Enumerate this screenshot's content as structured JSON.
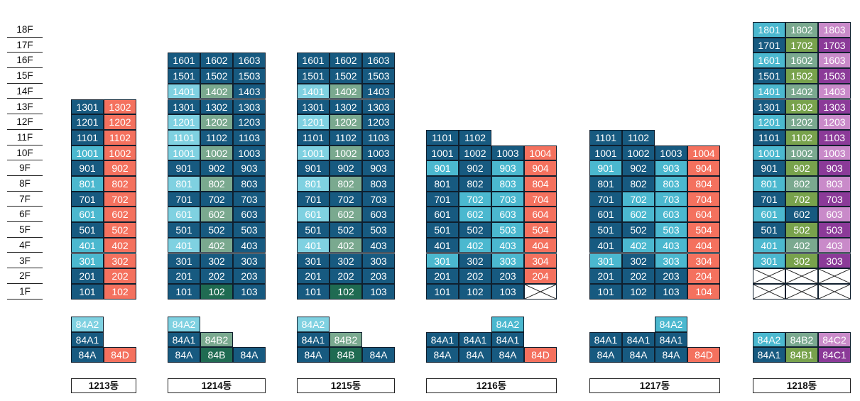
{
  "floors": [
    "18F",
    "17F",
    "16F",
    "15F",
    "14F",
    "13F",
    "12F",
    "11F",
    "10F",
    "9F",
    "8F",
    "7F",
    "6F",
    "5F",
    "4F",
    "3F",
    "2F",
    "1F"
  ],
  "palette": {
    "dblue": "#175a80",
    "lblue": "#4bb8cf",
    "vlblue": "#7fd1e1",
    "dgreen": "#1f6b52",
    "mgreen": "#3d9b6d",
    "sgreen": "#7aa98f",
    "lgreen": "#78a24c",
    "coral": "#f4715e",
    "purple": "#8b3a98",
    "lpurple": "#c98ac9",
    "empty": "#ffffff"
  },
  "buildings": [
    {
      "name": "1213동",
      "x": 100,
      "columns": [
        {
          "unit": "01",
          "floors": [
            1,
            13
          ],
          "colors": {
            "1": "dblue",
            "2": "dblue",
            "3": "lblue",
            "4": "lblue",
            "5": "dblue",
            "6": "lblue",
            "7": "dblue",
            "8": "lblue",
            "9": "dblue",
            "10": "lblue",
            "11": "dblue",
            "12": "dblue",
            "13": "dblue"
          }
        },
        {
          "unit": "02",
          "floors": [
            1,
            13
          ],
          "default": "coral"
        }
      ],
      "types": [
        [
          {
            "t": "84A2",
            "c": "vlblue"
          }
        ],
        [
          {
            "t": "84A1",
            "c": "dblue"
          }
        ],
        [
          {
            "t": "84A",
            "c": "dblue"
          },
          {
            "t": "84D",
            "c": "coral"
          }
        ]
      ]
    },
    {
      "name": "1214동",
      "x": 236,
      "columns": [
        {
          "unit": "01",
          "floors": [
            1,
            16
          ],
          "colors": {
            "1": "dblue",
            "2": "dblue",
            "3": "dblue",
            "4": "vlblue",
            "5": "dblue",
            "6": "vlblue",
            "7": "dblue",
            "8": "vlblue",
            "9": "dblue",
            "10": "vlblue",
            "11": "vlblue",
            "12": "vlblue",
            "13": "dblue",
            "14": "vlblue",
            "15": "dblue",
            "16": "dblue"
          }
        },
        {
          "unit": "02",
          "floors": [
            1,
            16
          ],
          "colors": {
            "1": "dgreen",
            "2": "dblue",
            "3": "dblue",
            "4": "sgreen",
            "5": "dblue",
            "6": "sgreen",
            "7": "dblue",
            "8": "sgreen",
            "9": "dblue",
            "10": "sgreen",
            "11": "dblue",
            "12": "sgreen",
            "13": "dblue",
            "14": "sgreen",
            "15": "dblue",
            "16": "dblue"
          }
        },
        {
          "unit": "03",
          "floors": [
            1,
            16
          ],
          "default": "dblue"
        }
      ],
      "types": [
        [
          {
            "t": "84A2",
            "c": "vlblue"
          }
        ],
        [
          {
            "t": "84A1",
            "c": "dblue"
          },
          {
            "t": "84B2",
            "c": "sgreen"
          }
        ],
        [
          {
            "t": "84A",
            "c": "dblue"
          },
          {
            "t": "84B",
            "c": "dgreen"
          },
          {
            "t": "84A",
            "c": "dblue"
          }
        ]
      ]
    },
    {
      "name": "1215동",
      "x": 418,
      "columns": [
        {
          "unit": "01",
          "floors": [
            1,
            16
          ],
          "colors": {
            "1": "dblue",
            "2": "dblue",
            "3": "dblue",
            "4": "vlblue",
            "5": "dblue",
            "6": "vlblue",
            "7": "dblue",
            "8": "vlblue",
            "9": "dblue",
            "10": "vlblue",
            "11": "dblue",
            "12": "vlblue",
            "13": "dblue",
            "14": "vlblue",
            "15": "dblue",
            "16": "dblue"
          }
        },
        {
          "unit": "02",
          "floors": [
            1,
            16
          ],
          "colors": {
            "1": "dgreen",
            "2": "dblue",
            "3": "dblue",
            "4": "sgreen",
            "5": "dblue",
            "6": "sgreen",
            "7": "dblue",
            "8": "sgreen",
            "9": "dblue",
            "10": "sgreen",
            "11": "dblue",
            "12": "sgreen",
            "13": "dblue",
            "14": "sgreen",
            "15": "dblue",
            "16": "dblue"
          }
        },
        {
          "unit": "03",
          "floors": [
            1,
            16
          ],
          "default": "dblue"
        }
      ],
      "types": [
        [
          {
            "t": "84A2",
            "c": "vlblue"
          }
        ],
        [
          {
            "t": "84A1",
            "c": "dblue"
          },
          {
            "t": "84B2",
            "c": "sgreen"
          }
        ],
        [
          {
            "t": "84A",
            "c": "dblue"
          },
          {
            "t": "84B",
            "c": "dgreen"
          },
          {
            "t": "84A",
            "c": "dblue"
          }
        ]
      ]
    },
    {
      "name": "1216동",
      "x": 600,
      "columns": [
        {
          "unit": "01",
          "floors": [
            1,
            11
          ],
          "colors": {
            "1": "dblue",
            "2": "dblue",
            "3": "lblue",
            "4": "dblue",
            "5": "dblue",
            "6": "dblue",
            "7": "dblue",
            "8": "dblue",
            "9": "lblue",
            "10": "dblue",
            "11": "dblue"
          }
        },
        {
          "unit": "02",
          "floors": [
            1,
            11
          ],
          "colors": {
            "1": "dblue",
            "2": "dblue",
            "3": "dblue",
            "4": "lblue",
            "5": "dblue",
            "6": "lblue",
            "7": "lblue",
            "8": "dblue",
            "9": "dblue",
            "10": "dblue",
            "11": "dblue"
          }
        },
        {
          "unit": "03",
          "floors": [
            1,
            10
          ],
          "colors": {
            "1": "dblue",
            "2": "dblue",
            "3": "lblue",
            "4": "lblue",
            "5": "lblue",
            "6": "lblue",
            "7": "lblue",
            "8": "lblue",
            "9": "lblue",
            "10": "dblue"
          }
        },
        {
          "unit": "04",
          "floors": [
            2,
            10
          ],
          "default": "coral",
          "empty_floors": [
            1
          ]
        }
      ],
      "types": [
        [
          null,
          null,
          {
            "t": "84A2",
            "c": "lblue"
          }
        ],
        [
          {
            "t": "84A1",
            "c": "dblue"
          },
          {
            "t": "84A1",
            "c": "dblue"
          },
          {
            "t": "84A1",
            "c": "dblue"
          }
        ],
        [
          {
            "t": "84A",
            "c": "dblue"
          },
          {
            "t": "84A",
            "c": "dblue"
          },
          {
            "t": "84A",
            "c": "dblue"
          },
          {
            "t": "84D",
            "c": "coral"
          }
        ]
      ]
    },
    {
      "name": "1217동",
      "x": 830,
      "columns": [
        {
          "unit": "01",
          "floors": [
            1,
            11
          ],
          "colors": {
            "1": "dblue",
            "2": "dblue",
            "3": "lblue",
            "4": "dblue",
            "5": "dblue",
            "6": "dblue",
            "7": "dblue",
            "8": "dblue",
            "9": "lblue",
            "10": "dblue",
            "11": "dblue"
          }
        },
        {
          "unit": "02",
          "floors": [
            1,
            11
          ],
          "colors": {
            "1": "dblue",
            "2": "dblue",
            "3": "dblue",
            "4": "lblue",
            "5": "dblue",
            "6": "lblue",
            "7": "lblue",
            "8": "dblue",
            "9": "dblue",
            "10": "dblue",
            "11": "dblue"
          }
        },
        {
          "unit": "03",
          "floors": [
            1,
            10
          ],
          "colors": {
            "1": "dblue",
            "2": "dblue",
            "3": "lblue",
            "4": "lblue",
            "5": "lblue",
            "6": "lblue",
            "7": "lblue",
            "8": "lblue",
            "9": "lblue",
            "10": "dblue"
          }
        },
        {
          "unit": "04",
          "floors": [
            1,
            10
          ],
          "default": "coral"
        }
      ],
      "types": [
        [
          null,
          null,
          {
            "t": "84A2",
            "c": "lblue"
          }
        ],
        [
          {
            "t": "84A1",
            "c": "dblue"
          },
          {
            "t": "84A1",
            "c": "dblue"
          },
          {
            "t": "84A1",
            "c": "dblue"
          }
        ],
        [
          {
            "t": "84A",
            "c": "dblue"
          },
          {
            "t": "84A",
            "c": "dblue"
          },
          {
            "t": "84A",
            "c": "dblue"
          },
          {
            "t": "84D",
            "c": "coral"
          }
        ]
      ]
    },
    {
      "name": "1218동",
      "x": 1060,
      "columns": [
        {
          "unit": "01",
          "floors": [
            3,
            18
          ],
          "empty_floors": [
            1,
            2
          ],
          "colors": {
            "3": "lblue",
            "4": "lblue",
            "5": "dblue",
            "6": "lblue",
            "7": "dblue",
            "8": "lblue",
            "9": "dblue",
            "10": "lblue",
            "11": "dblue",
            "12": "lblue",
            "13": "dblue",
            "14": "lblue",
            "15": "dblue",
            "16": "lblue",
            "17": "dblue",
            "18": "lblue"
          }
        },
        {
          "unit": "02",
          "floors": [
            3,
            18
          ],
          "empty_floors": [
            1,
            2
          ],
          "colors": {
            "3": "lgreen",
            "4": "sgreen",
            "5": "lgreen",
            "6": "dblue",
            "7": "lgreen",
            "8": "sgreen",
            "9": "lgreen",
            "10": "sgreen",
            "11": "lgreen",
            "12": "sgreen",
            "13": "lgreen",
            "14": "sgreen",
            "15": "lgreen",
            "16": "sgreen",
            "17": "lgreen",
            "18": "sgreen"
          }
        },
        {
          "unit": "03",
          "floors": [
            3,
            18
          ],
          "empty_floors": [
            1,
            2
          ],
          "colors": {
            "3": "purple",
            "4": "lpurple",
            "5": "purple",
            "6": "lpurple",
            "7": "purple",
            "8": "lpurple",
            "9": "purple",
            "10": "lpurple",
            "11": "purple",
            "12": "lpurple",
            "13": "purple",
            "14": "lpurple",
            "15": "purple",
            "16": "lpurple",
            "17": "purple",
            "18": "lpurple"
          }
        }
      ],
      "types": [
        [
          {
            "t": "84A2",
            "c": "lblue"
          },
          {
            "t": "84B2",
            "c": "sgreen"
          },
          {
            "t": "84C2",
            "c": "lpurple"
          }
        ],
        [
          {
            "t": "84A1",
            "c": "dblue"
          },
          {
            "t": "84B1",
            "c": "lgreen"
          },
          {
            "t": "84C1",
            "c": "purple"
          }
        ]
      ]
    }
  ]
}
